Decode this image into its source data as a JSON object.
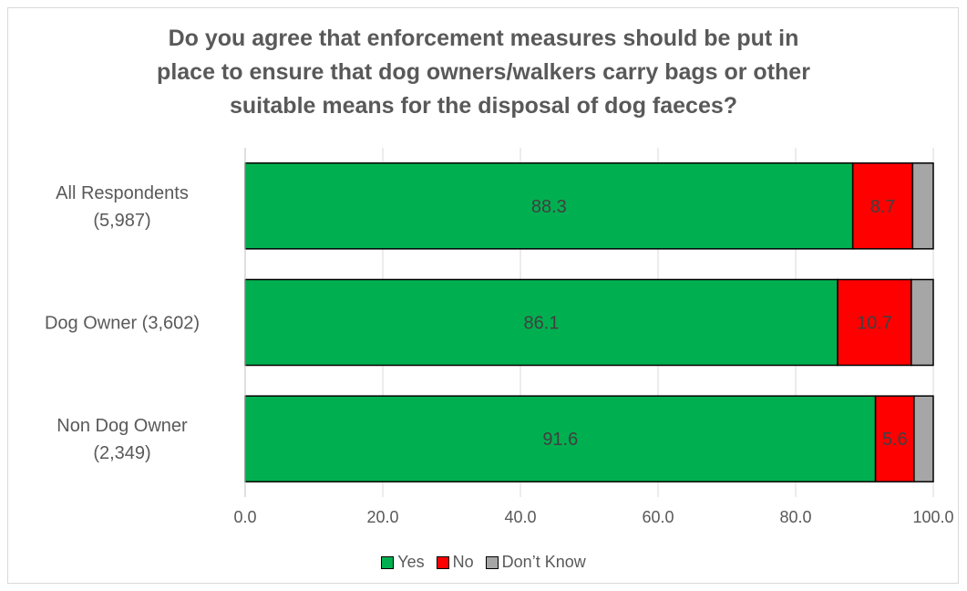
{
  "chart_data": {
    "type": "bar",
    "orientation": "horizontal",
    "stacked": true,
    "title_lines": [
      "Do you agree that enforcement measures should be put in",
      "place to ensure that dog owners/walkers carry bags or other",
      "suitable means for the disposal of dog faeces?"
    ],
    "categories": [
      [
        "All Respondents",
        "(5,987)"
      ],
      [
        "Dog Owner (3,602)"
      ],
      [
        "Non Dog Owner",
        "(2,349)"
      ]
    ],
    "series": [
      {
        "name": "Yes",
        "color": "#00b050",
        "values": [
          88.3,
          86.1,
          91.6
        ],
        "show_labels": true
      },
      {
        "name": "No",
        "color": "#ff0000",
        "values": [
          8.7,
          10.7,
          5.6
        ],
        "show_labels": true
      },
      {
        "name": "Don’t Know",
        "color": "#a6a6a6",
        "values": [
          3.0,
          3.2,
          2.8
        ],
        "show_labels": false
      }
    ],
    "xlim": [
      0,
      100
    ],
    "xticks": [
      "0.0",
      "20.0",
      "40.0",
      "60.0",
      "80.0",
      "100.0"
    ],
    "grid": "vertical",
    "legend_position": "bottom"
  }
}
